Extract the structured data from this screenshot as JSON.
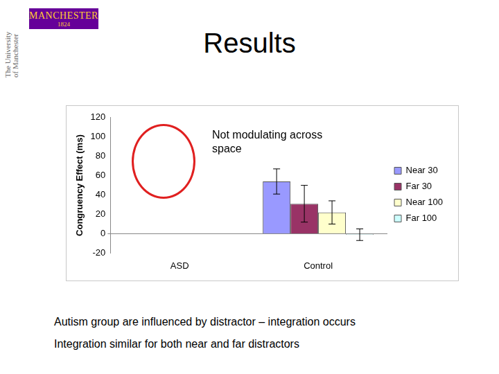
{
  "header": {
    "logo": "MANCHESTER",
    "logo_year": "1824",
    "side_text": "The University of Manchester",
    "title": "Results"
  },
  "chart_data": {
    "type": "bar",
    "categories": [
      "ASD",
      "Control"
    ],
    "series": [
      {
        "name": "Near 30",
        "color": "#9999ff",
        "values": [
          null,
          54
        ],
        "errors": [
          null,
          13
        ]
      },
      {
        "name": "Far 30",
        "color": "#993366",
        "values": [
          null,
          31
        ],
        "errors": [
          null,
          19
        ]
      },
      {
        "name": "Near 100",
        "color": "#ffffcc",
        "values": [
          null,
          22
        ],
        "errors": [
          null,
          12
        ]
      },
      {
        "name": "Far 100",
        "color": "#ccffff",
        "values": [
          null,
          -1
        ],
        "errors": [
          null,
          6
        ]
      }
    ],
    "ylabel": "Congruency Effect (ms)",
    "ylim": [
      -20,
      120
    ],
    "yticks": [
      -20,
      0,
      20,
      40,
      60,
      80,
      100,
      120
    ],
    "grid": false,
    "legend": "right",
    "annotations": [
      "Not modulating across space"
    ]
  },
  "bullets": [
    "Autism group are influenced by distractor – integration occurs",
    "Integration similar for both near and far distractors"
  ]
}
